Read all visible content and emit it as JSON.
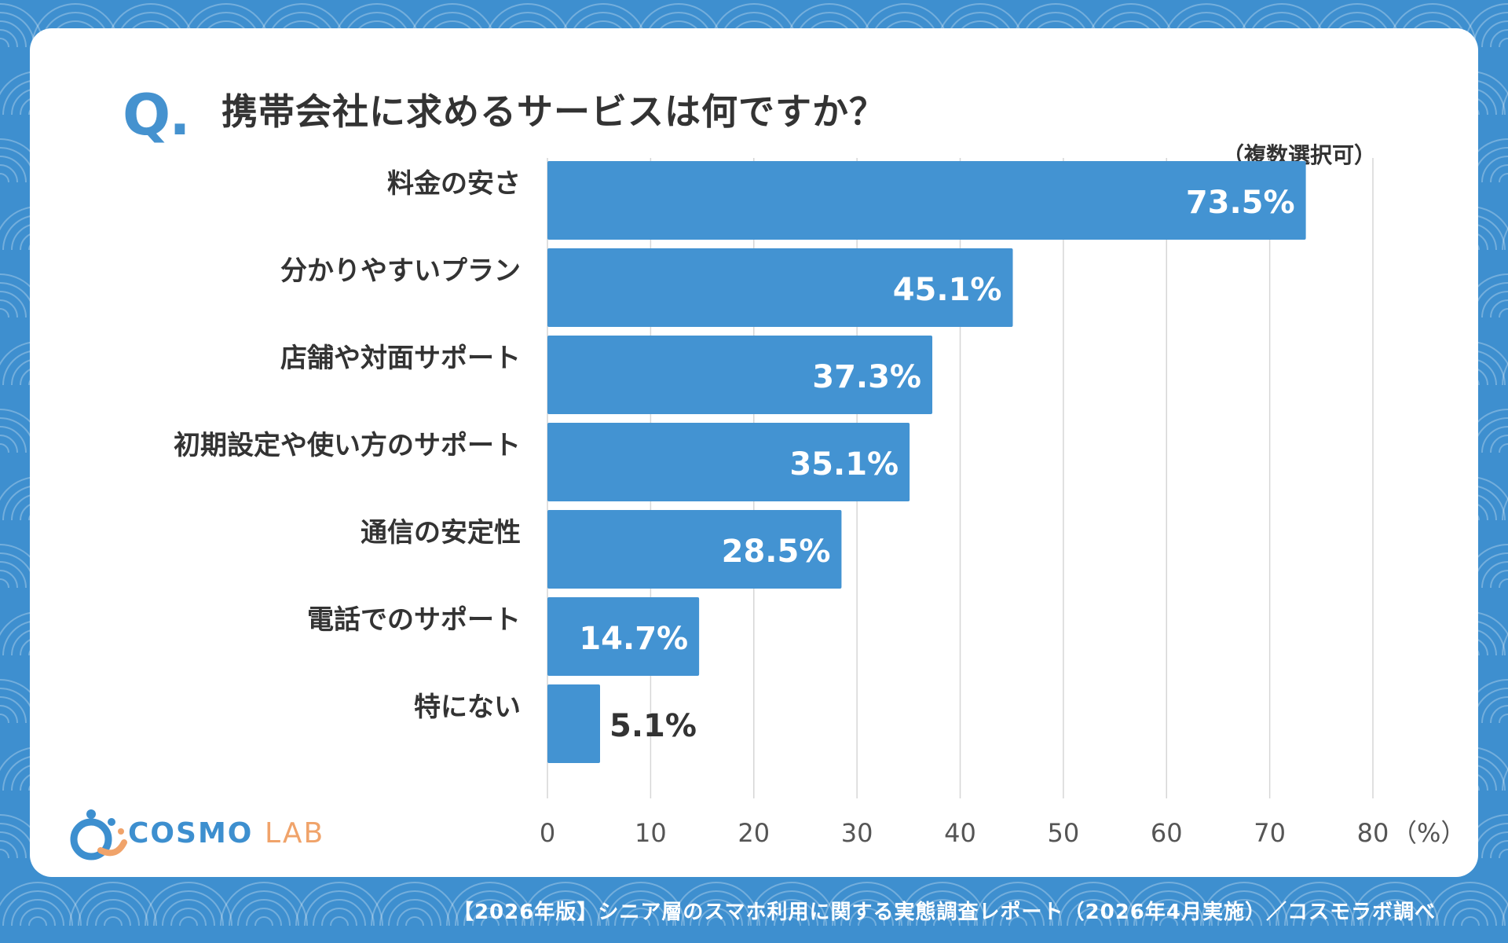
{
  "header": {
    "q_mark": "Q.",
    "title": "携帯会社に求めるサービスは何ですか？",
    "note": "（複数選択可）"
  },
  "chart_data": {
    "type": "bar",
    "orientation": "horizontal",
    "categories": [
      "料金の安さ",
      "分かりやすいプラン",
      "店舗や対面サポート",
      "初期設定や使い方のサポート",
      "通信の安定性",
      "電話でのサポート",
      "特にない"
    ],
    "values": [
      73.5,
      45.1,
      37.3,
      35.1,
      28.5,
      14.7,
      5.1
    ],
    "value_labels": [
      "73.5%",
      "45.1%",
      "37.3%",
      "35.1%",
      "28.5%",
      "14.7%",
      "5.1%"
    ],
    "xlim": [
      0,
      80
    ],
    "x_ticks": [
      "0",
      "10",
      "20",
      "30",
      "40",
      "50",
      "60",
      "70",
      "80"
    ],
    "x_unit": "（%）",
    "grid": "vertical",
    "bar_color": "#4393d2"
  },
  "brand": {
    "logo_word": "COSMO",
    "logo_sub": "LAB",
    "logo_colors": {
      "blue": "#3d8fcf",
      "orange": "#f0a36a"
    }
  },
  "footer": {
    "source": "【2026年版】シニア層のスマホ利用に関する実態調査レポート（2026年4月実施）／コスモラボ調べ"
  },
  "colors": {
    "background": "#3e8fcf",
    "card": "#ffffff",
    "text": "#333333"
  }
}
